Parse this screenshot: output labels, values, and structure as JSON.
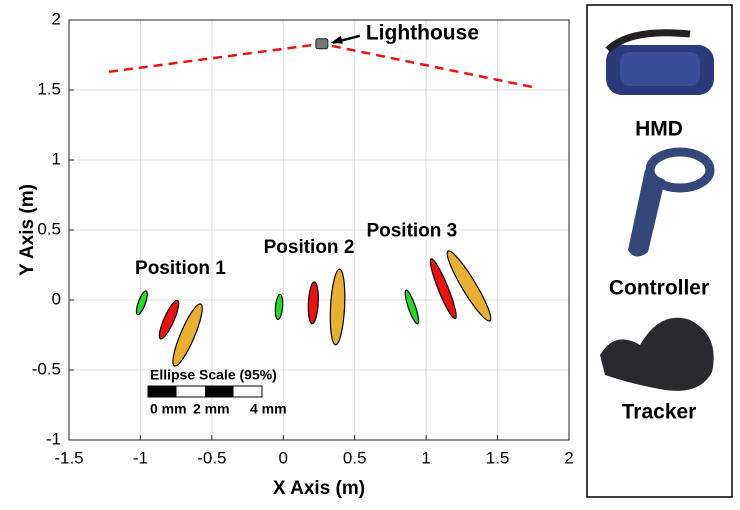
{
  "chart_data": {
    "type": "ellipse",
    "xlabel": "X Axis (m)",
    "ylabel": "Y Axis (m)",
    "xlim": [
      -1.5,
      2
    ],
    "ylim": [
      -1,
      2
    ],
    "xticks": [
      -1.5,
      -1,
      -0.5,
      0,
      0.5,
      1,
      1.5,
      2
    ],
    "yticks": [
      -1,
      -0.5,
      0,
      0.5,
      1,
      1.5,
      2
    ],
    "grid": true,
    "lighthouse": {
      "label": "Lighthouse",
      "x": 0.27,
      "y": 1.83
    },
    "field_of_view": {
      "color": "#ee1111",
      "x": [
        -1.22,
        0.27,
        1.75
      ],
      "y": [
        1.63,
        1.83,
        1.52
      ]
    },
    "positions": [
      {
        "label": "Position 1",
        "x": -0.72,
        "y": 0.22
      },
      {
        "label": "Position 2",
        "x": 0.18,
        "y": 0.37
      },
      {
        "label": "Position 3",
        "x": 0.9,
        "y": 0.49
      }
    ],
    "series": [
      {
        "name": "HMD",
        "color": "#22dd22",
        "x": [
          -0.99,
          -0.03,
          0.9
        ],
        "y": [
          -0.02,
          -0.05,
          -0.05
        ],
        "major": [
          0.09,
          0.09,
          0.127
        ],
        "minor": [
          0.025,
          0.025,
          0.025
        ],
        "angle": [
          20,
          5,
          -19
        ]
      },
      {
        "name": "Controller",
        "color": "#ee1111",
        "x": [
          -0.8,
          0.21,
          1.12
        ],
        "y": [
          -0.14,
          -0.02,
          0.08
        ],
        "major": [
          0.15,
          0.15,
          0.23
        ],
        "minor": [
          0.035,
          0.035,
          0.035
        ],
        "angle": [
          24,
          3,
          -22
        ]
      },
      {
        "name": "Tracker",
        "color": "#e8b030",
        "x": [
          -0.67,
          0.38,
          1.3
        ],
        "y": [
          -0.25,
          -0.05,
          0.1
        ],
        "major": [
          0.24,
          0.27,
          0.29
        ],
        "minor": [
          0.05,
          0.05,
          0.05
        ],
        "angle": [
          23,
          3,
          -31
        ]
      }
    ],
    "scale_bar": {
      "title": "Ellipse Scale (95%)",
      "labels": [
        "0 mm",
        "2 mm",
        "4 mm"
      ]
    }
  }
}
